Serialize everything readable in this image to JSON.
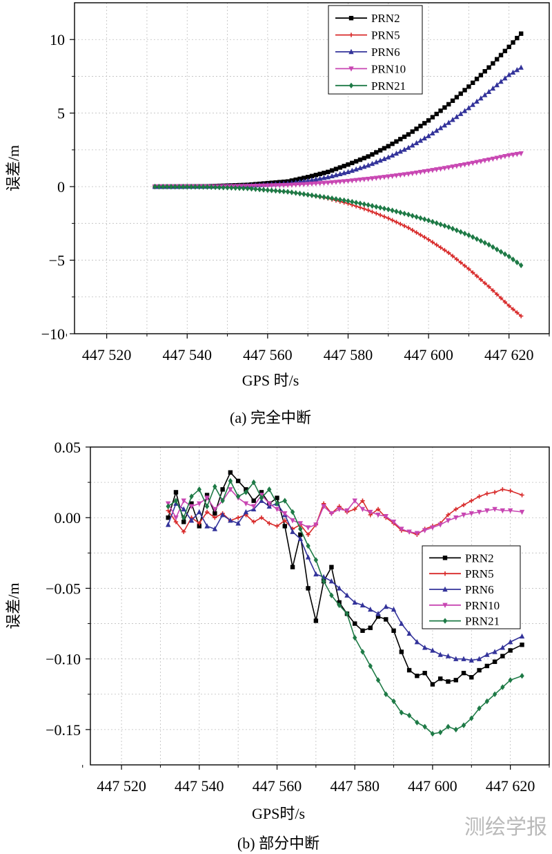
{
  "watermark": "测绘学报",
  "chart_data": [
    {
      "type": "line",
      "caption": "(a) 完全中断",
      "xlabel": "GPS 时/s",
      "ylabel": "误差/m",
      "xlim": [
        447512,
        447630
      ],
      "ylim": [
        -10,
        12.5
      ],
      "grid": true,
      "legend_position": "top-right",
      "x_ticks": [
        447520,
        447540,
        447560,
        447580,
        447600,
        447620
      ],
      "x_tick_labels": [
        "447 520",
        "447 540",
        "447 560",
        "447 580",
        "447 600",
        "447 620"
      ],
      "y_ticks": [
        -10,
        -5,
        0,
        5,
        10
      ],
      "y_tick_labels": [
        "−10",
        "−5",
        "0",
        "5",
        "10"
      ],
      "series": [
        {
          "name": "PRN2",
          "color": "#000000",
          "marker": "square",
          "x": [
            447532,
            447545,
            447555,
            447565,
            447570,
            447575,
            447580,
            447585,
            447590,
            447595,
            447600,
            447605,
            447610,
            447615,
            447620,
            447623
          ],
          "y": [
            0,
            0.02,
            0.12,
            0.35,
            0.65,
            1.0,
            1.5,
            2.05,
            2.75,
            3.55,
            4.5,
            5.6,
            6.8,
            8.1,
            9.5,
            10.4
          ]
        },
        {
          "name": "PRN5",
          "color": "#d82a2a",
          "marker": "plus",
          "x": [
            447532,
            447545,
            447555,
            447565,
            447570,
            447575,
            447580,
            447585,
            447590,
            447595,
            447600,
            447605,
            447610,
            447615,
            447620,
            447623
          ],
          "y": [
            0,
            -0.02,
            -0.12,
            -0.35,
            -0.55,
            -0.8,
            -1.15,
            -1.6,
            -2.15,
            -2.8,
            -3.6,
            -4.5,
            -5.6,
            -6.8,
            -8.1,
            -8.8
          ]
        },
        {
          "name": "PRN6",
          "color": "#33339a",
          "marker": "triangle-up",
          "x": [
            447532,
            447545,
            447555,
            447565,
            447570,
            447575,
            447580,
            447585,
            447590,
            447595,
            447600,
            447605,
            447610,
            447615,
            447620,
            447623
          ],
          "y": [
            0,
            0.01,
            0.07,
            0.22,
            0.4,
            0.65,
            1.0,
            1.45,
            2.0,
            2.65,
            3.45,
            4.35,
            5.35,
            6.45,
            7.6,
            8.1
          ]
        },
        {
          "name": "PRN10",
          "color": "#c846b2",
          "marker": "triangle-down",
          "x": [
            447532,
            447545,
            447555,
            447565,
            447570,
            447575,
            447580,
            447585,
            447590,
            447595,
            447600,
            447605,
            447610,
            447615,
            447620,
            447623
          ],
          "y": [
            0,
            0.0,
            0.03,
            0.1,
            0.17,
            0.26,
            0.38,
            0.52,
            0.68,
            0.86,
            1.07,
            1.3,
            1.55,
            1.83,
            2.12,
            2.25
          ]
        },
        {
          "name": "PRN21",
          "color": "#1e7a46",
          "marker": "diamond",
          "x": [
            447532,
            447545,
            447555,
            447565,
            447570,
            447575,
            447580,
            447585,
            447590,
            447595,
            447600,
            447605,
            447610,
            447615,
            447620,
            447623
          ],
          "y": [
            0,
            -0.02,
            -0.12,
            -0.35,
            -0.55,
            -0.75,
            -0.98,
            -1.25,
            -1.55,
            -1.9,
            -2.3,
            -2.75,
            -3.3,
            -3.95,
            -4.75,
            -5.35
          ]
        }
      ]
    },
    {
      "type": "line",
      "caption": "(b) 部分中断",
      "xlabel": "GPS时/s",
      "ylabel": "误差/m",
      "xlim": [
        447512,
        447630
      ],
      "ylim": [
        -0.175,
        0.05
      ],
      "grid": true,
      "legend_position": "right",
      "x_ticks": [
        447520,
        447540,
        447560,
        447580,
        447600,
        447620
      ],
      "x_tick_labels": [
        "447 520",
        "447 540",
        "447 560",
        "447 580",
        "447 600",
        "447 620"
      ],
      "y_ticks": [
        -0.15,
        -0.1,
        -0.05,
        0.0,
        0.05
      ],
      "y_tick_labels": [
        "−0.15",
        "−0.10",
        "−0.05",
        "0.00",
        "0.05"
      ],
      "series": [
        {
          "name": "PRN2",
          "color": "#000000",
          "marker": "square",
          "x": [
            447532,
            447534,
            447536,
            447538,
            447540,
            447542,
            447544,
            447546,
            447548,
            447550,
            447552,
            447554,
            447556,
            447558,
            447560,
            447562,
            447564,
            447566,
            447568,
            447570,
            447572,
            447574,
            447576,
            447578,
            447580,
            447582,
            447584,
            447586,
            447588,
            447590,
            447592,
            447594,
            447596,
            447598,
            447600,
            447602,
            447604,
            447606,
            447608,
            447610,
            447612,
            447614,
            447616,
            447618,
            447620,
            447623
          ],
          "y": [
            0.0,
            0.018,
            -0.003,
            0.01,
            -0.006,
            0.016,
            0.003,
            0.02,
            0.032,
            0.026,
            0.02,
            0.012,
            0.018,
            0.01,
            0.014,
            -0.006,
            -0.035,
            -0.012,
            -0.05,
            -0.073,
            -0.045,
            -0.035,
            -0.06,
            -0.068,
            -0.075,
            -0.08,
            -0.078,
            -0.07,
            -0.072,
            -0.08,
            -0.095,
            -0.108,
            -0.112,
            -0.11,
            -0.118,
            -0.114,
            -0.116,
            -0.115,
            -0.11,
            -0.113,
            -0.108,
            -0.105,
            -0.102,
            -0.098,
            -0.094,
            -0.09
          ]
        },
        {
          "name": "PRN5",
          "color": "#d82a2a",
          "marker": "plus",
          "x": [
            447532,
            447534,
            447536,
            447538,
            447540,
            447542,
            447544,
            447546,
            447548,
            447550,
            447552,
            447554,
            447556,
            447558,
            447560,
            447562,
            447564,
            447566,
            447568,
            447570,
            447572,
            447574,
            447576,
            447578,
            447580,
            447582,
            447584,
            447586,
            447588,
            447590,
            447592,
            447594,
            447596,
            447598,
            447600,
            447602,
            447604,
            447606,
            447608,
            447610,
            447612,
            447614,
            447616,
            447618,
            447620,
            447623
          ],
          "y": [
            0.005,
            -0.003,
            -0.01,
            0.0,
            -0.004,
            0.004,
            0.0,
            0.003,
            -0.002,
            0.0,
            0.002,
            -0.003,
            0.0,
            -0.004,
            -0.006,
            -0.002,
            -0.008,
            -0.005,
            -0.012,
            -0.005,
            0.01,
            0.003,
            0.008,
            0.004,
            0.006,
            0.012,
            0.002,
            0.006,
            0.0,
            -0.004,
            -0.009,
            -0.01,
            -0.012,
            -0.008,
            -0.006,
            -0.004,
            0.002,
            0.006,
            0.009,
            0.012,
            0.015,
            0.017,
            0.018,
            0.02,
            0.019,
            0.016
          ]
        },
        {
          "name": "PRN6",
          "color": "#33339a",
          "marker": "triangle-up",
          "x": [
            447532,
            447534,
            447536,
            447538,
            447540,
            447542,
            447544,
            447546,
            447548,
            447550,
            447552,
            447554,
            447556,
            447558,
            447560,
            447562,
            447564,
            447566,
            447568,
            447570,
            447572,
            447574,
            447576,
            447578,
            447580,
            447582,
            447584,
            447586,
            447588,
            447590,
            447592,
            447594,
            447596,
            447598,
            447600,
            447602,
            447604,
            447606,
            447608,
            447610,
            447612,
            447614,
            447616,
            447618,
            447620,
            447623
          ],
          "y": [
            -0.005,
            0.01,
            0.006,
            -0.002,
            0.004,
            -0.006,
            -0.008,
            0.002,
            -0.002,
            -0.004,
            0.004,
            0.006,
            0.012,
            0.008,
            0.01,
            0.002,
            -0.01,
            -0.015,
            -0.028,
            -0.04,
            -0.042,
            -0.045,
            -0.05,
            -0.055,
            -0.06,
            -0.062,
            -0.065,
            -0.068,
            -0.063,
            -0.065,
            -0.075,
            -0.082,
            -0.088,
            -0.092,
            -0.094,
            -0.097,
            -0.098,
            -0.1,
            -0.1,
            -0.101,
            -0.1,
            -0.097,
            -0.095,
            -0.092,
            -0.088,
            -0.084
          ]
        },
        {
          "name": "PRN10",
          "color": "#c846b2",
          "marker": "triangle-down",
          "x": [
            447532,
            447534,
            447536,
            447538,
            447540,
            447542,
            447544,
            447546,
            447548,
            447550,
            447552,
            447554,
            447556,
            447558,
            447560,
            447562,
            447564,
            447566,
            447568,
            447570,
            447572,
            447574,
            447576,
            447578,
            447580,
            447582,
            447584,
            447586,
            447588,
            447590,
            447592,
            447594,
            447596,
            447598,
            447600,
            447602,
            447604,
            447606,
            447608,
            447610,
            447612,
            447614,
            447616,
            447618,
            447620,
            447623
          ],
          "y": [
            0.01,
            0.0,
            0.012,
            0.008,
            0.01,
            0.014,
            0.006,
            0.012,
            0.02,
            0.014,
            0.01,
            0.008,
            0.016,
            0.01,
            0.006,
            0.003,
            -0.002,
            -0.004,
            -0.007,
            -0.005,
            0.008,
            0.003,
            0.006,
            0.005,
            0.012,
            0.006,
            0.004,
            0.002,
            0.001,
            -0.003,
            -0.008,
            -0.01,
            -0.011,
            -0.009,
            -0.007,
            -0.005,
            -0.002,
            0.0,
            0.002,
            0.003,
            0.004,
            0.005,
            0.006,
            0.005,
            0.005,
            0.004
          ]
        },
        {
          "name": "PRN21",
          "color": "#1e7a46",
          "marker": "diamond",
          "x": [
            447532,
            447534,
            447536,
            447538,
            447540,
            447542,
            447544,
            447546,
            447548,
            447550,
            447552,
            447554,
            447556,
            447558,
            447560,
            447562,
            447564,
            447566,
            447568,
            447570,
            447572,
            447574,
            447576,
            447578,
            447580,
            447582,
            447584,
            447586,
            447588,
            447590,
            447592,
            447594,
            447596,
            447598,
            447600,
            447602,
            447604,
            447606,
            447608,
            447610,
            447612,
            447614,
            447616,
            447618,
            447620,
            447623
          ],
          "y": [
            0.008,
            0.012,
            0.0,
            0.015,
            0.02,
            0.008,
            0.022,
            0.012,
            0.026,
            0.015,
            0.018,
            0.025,
            0.014,
            0.02,
            0.01,
            0.012,
            0.004,
            -0.008,
            -0.02,
            -0.03,
            -0.045,
            -0.055,
            -0.062,
            -0.068,
            -0.085,
            -0.095,
            -0.105,
            -0.115,
            -0.125,
            -0.13,
            -0.138,
            -0.14,
            -0.145,
            -0.148,
            -0.153,
            -0.152,
            -0.148,
            -0.15,
            -0.147,
            -0.142,
            -0.135,
            -0.13,
            -0.125,
            -0.12,
            -0.115,
            -0.112
          ]
        }
      ]
    }
  ]
}
